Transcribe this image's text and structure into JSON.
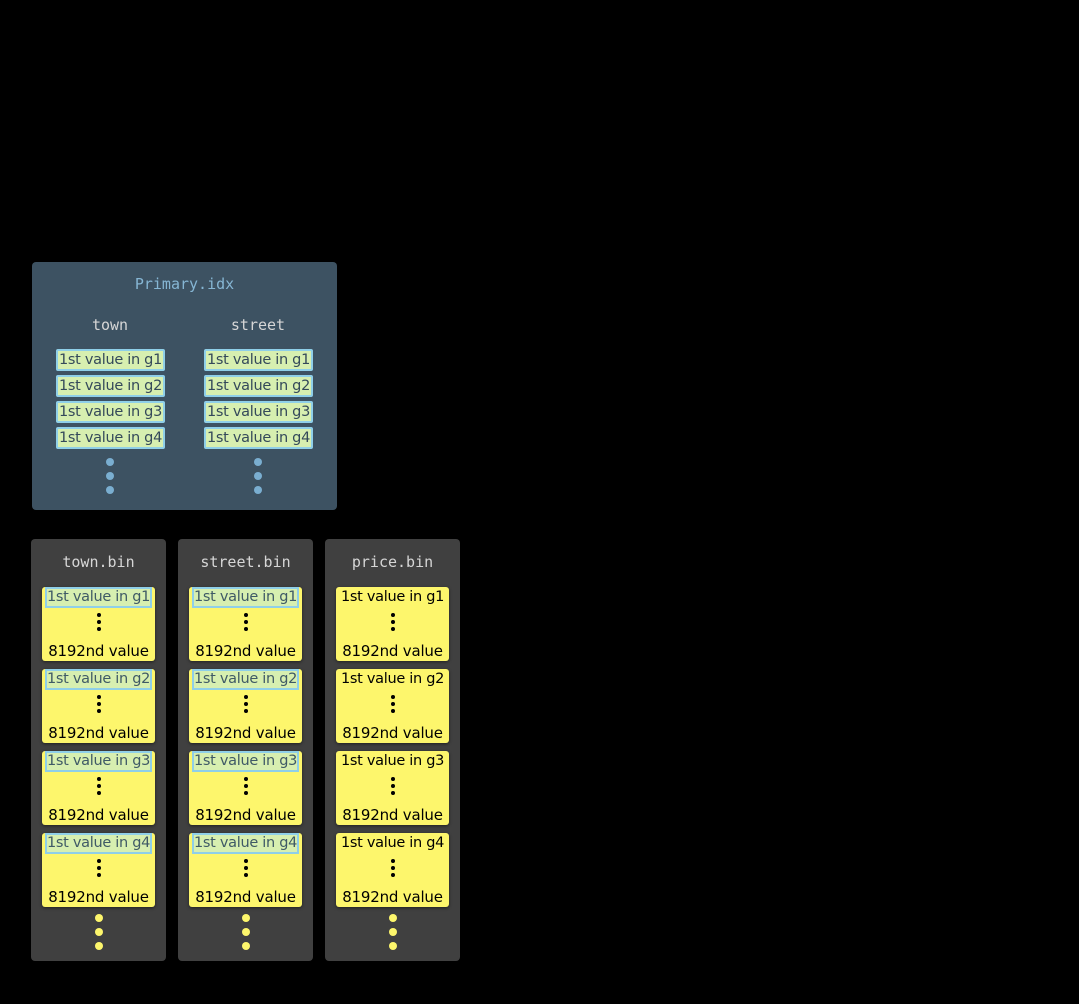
{
  "primary_index": {
    "title": "Primary.idx",
    "columns": [
      {
        "header": "town",
        "entries": [
          "1st value in g1",
          "1st value in g2",
          "1st value in g3",
          "1st value in g4"
        ]
      },
      {
        "header": "street",
        "entries": [
          "1st value in g1",
          "1st value in g2",
          "1st value in g3",
          "1st value in g4"
        ]
      }
    ]
  },
  "bin_files": [
    {
      "title": "town.bin",
      "highlighted": true,
      "granules": [
        {
          "first": "1st value in g1",
          "last": "8192nd value"
        },
        {
          "first": "1st value in g2",
          "last": "8192nd value"
        },
        {
          "first": "1st value in g3",
          "last": "8192nd value"
        },
        {
          "first": "1st value in g4",
          "last": "8192nd value"
        }
      ]
    },
    {
      "title": "street.bin",
      "highlighted": true,
      "granules": [
        {
          "first": "1st value in g1",
          "last": "8192nd value"
        },
        {
          "first": "1st value in g2",
          "last": "8192nd value"
        },
        {
          "first": "1st value in g3",
          "last": "8192nd value"
        },
        {
          "first": "1st value in g4",
          "last": "8192nd value"
        }
      ]
    },
    {
      "title": "price.bin",
      "highlighted": false,
      "granules": [
        {
          "first": "1st value in g1",
          "last": "8192nd value"
        },
        {
          "first": "1st value in g2",
          "last": "8192nd value"
        },
        {
          "first": "1st value in g3",
          "last": "8192nd value"
        },
        {
          "first": "1st value in g4",
          "last": "8192nd value"
        }
      ]
    }
  ],
  "colors": {
    "primary_bg": "#3d5262",
    "bin_bg": "#404040",
    "granule": "#fdf66c",
    "index_entry": "#d7efb0",
    "index_border": "#8fcfe8"
  }
}
